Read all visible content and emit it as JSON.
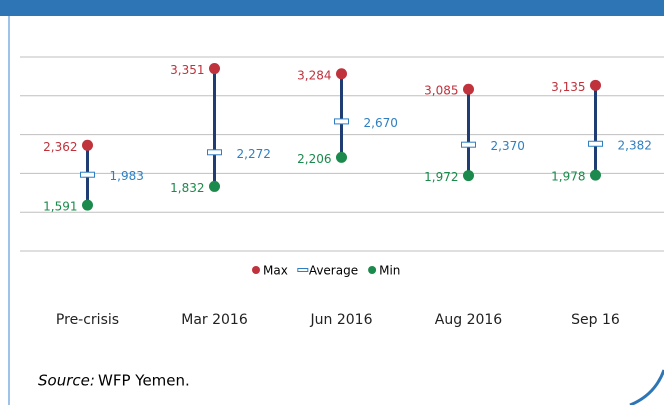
{
  "chart_data": {
    "type": "range",
    "categories": [
      "Pre-crisis",
      "Mar 2016",
      "Jun 2016",
      "Aug 2016",
      "Sep 16"
    ],
    "series": [
      {
        "name": "Max",
        "color": "#c0323c",
        "values": [
          2362,
          3351,
          3284,
          3085,
          3135
        ],
        "value_labels": [
          "2,362",
          "3,351",
          "3,284",
          "3,085",
          "3,135"
        ]
      },
      {
        "name": "Average",
        "color": "#2e7fc1",
        "values": [
          1983,
          2272,
          2670,
          2370,
          2382
        ],
        "value_labels": [
          "1,983",
          "2,272",
          "2,670",
          "2,370",
          "2,382"
        ]
      },
      {
        "name": "Min",
        "color": "#1b8a4c",
        "values": [
          1591,
          1832,
          2206,
          1972,
          1978
        ],
        "value_labels": [
          "1,591",
          "1,832",
          "2,206",
          "1,972",
          "1,978"
        ]
      }
    ],
    "range_line_color": "#1f3d73",
    "ylim": [
      1000,
      3500
    ],
    "yticks": [
      1000,
      1500,
      2000,
      2500,
      3000,
      3500
    ],
    "grid": true,
    "legend": "bottom",
    "source_label": "Source:",
    "source": "WFP Yemen."
  }
}
